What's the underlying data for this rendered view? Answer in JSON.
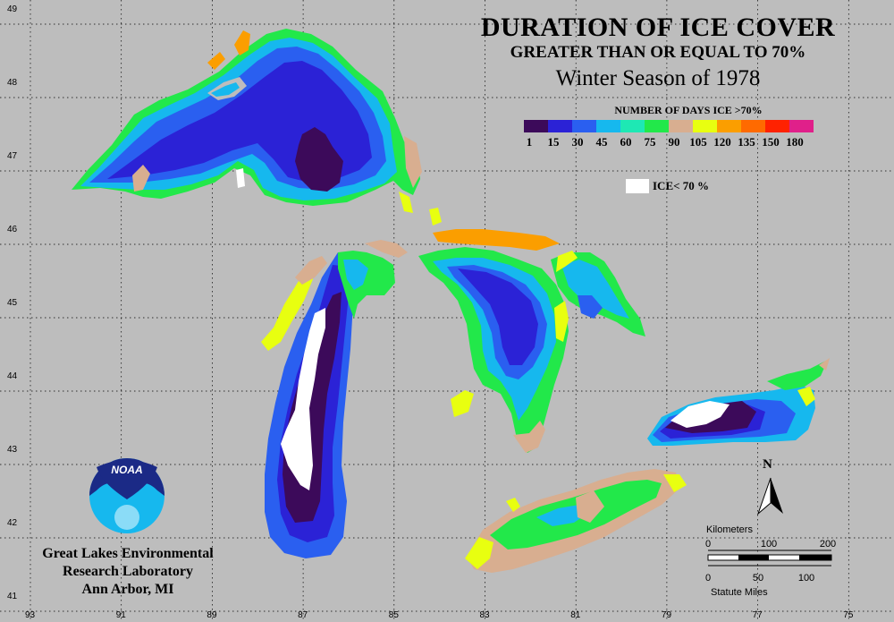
{
  "title": {
    "line1": "DURATION OF ICE COVER",
    "line2": "GREATER THAN OR EQUAL TO 70%",
    "line3": "Winter Season of 1978"
  },
  "legend": {
    "title": "NUMBER OF DAYS ICE >70%",
    "colors": [
      "#3c0a5a",
      "#2b22d6",
      "#2a5ff0",
      "#16b8ee",
      "#1ee8b4",
      "#22e84a",
      "#d8ae90",
      "#e8ff10",
      "#fb9e00",
      "#ff6a00",
      "#ff2200",
      "#e0208a"
    ],
    "labels": [
      "1",
      "15",
      "30",
      "45",
      "60",
      "75",
      "90",
      "105",
      "120",
      "135",
      "150",
      "180"
    ],
    "ice_label": "ICE< 70 %",
    "ice_color": "#ffffff"
  },
  "latitudes": [
    "49",
    "48",
    "47",
    "46",
    "45",
    "44",
    "43",
    "42",
    "41"
  ],
  "longitudes": [
    "93",
    "91",
    "89",
    "87",
    "85",
    "83",
    "81",
    "79",
    "77",
    "75"
  ],
  "organization": {
    "logo_text": "NOAA",
    "line1": "Great Lakes Environmental",
    "line2": "Research Laboratory",
    "line3": "Ann Arbor, MI"
  },
  "scale_bar": {
    "km_label": "Kilometers",
    "km_ticks": [
      "0",
      "100",
      "200"
    ],
    "mi_label": "Statute Miles",
    "mi_ticks": [
      "0",
      "50",
      "100"
    ]
  },
  "north_arrow": {
    "label": "N"
  }
}
